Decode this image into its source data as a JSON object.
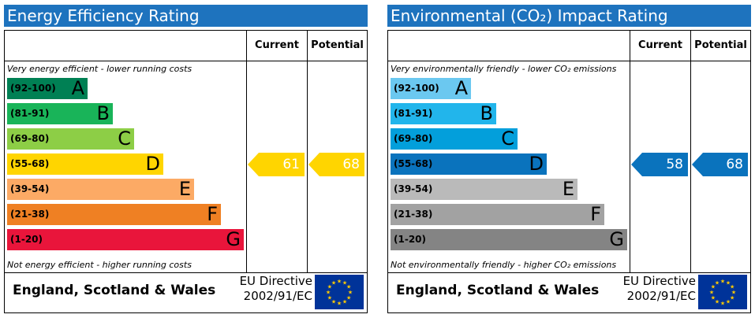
{
  "chart_data": [
    {
      "type": "bar",
      "title": "Energy Efficiency Rating",
      "columns": [
        "Current",
        "Potential"
      ],
      "top_note": "Very energy efficient - lower running costs",
      "bottom_note": "Not energy efficient - higher running costs",
      "bands": [
        {
          "range": "(92-100)",
          "letter": "A",
          "color": "#008054"
        },
        {
          "range": "(81-91)",
          "letter": "B",
          "color": "#19b459"
        },
        {
          "range": "(69-80)",
          "letter": "C",
          "color": "#8dce46"
        },
        {
          "range": "(55-68)",
          "letter": "D",
          "color": "#ffd500"
        },
        {
          "range": "(39-54)",
          "letter": "E",
          "color": "#fcaa65"
        },
        {
          "range": "(21-38)",
          "letter": "F",
          "color": "#ef8023"
        },
        {
          "range": "(1-20)",
          "letter": "G",
          "color": "#e9153b"
        }
      ],
      "current": {
        "value": 61,
        "color": "#ffd500"
      },
      "potential": {
        "value": 68,
        "color": "#ffd500"
      },
      "footer_region": "England, Scotland & Wales",
      "directive_line1": "EU Directive",
      "directive_line2": "2002/91/EC"
    },
    {
      "type": "bar",
      "title": "Environmental (CO₂) Impact Rating",
      "columns": [
        "Current",
        "Potential"
      ],
      "top_note": "Very environmentally friendly - lower CO₂ emissions",
      "bottom_note": "Not environmentally friendly - higher CO₂ emissions",
      "bands": [
        {
          "range": "(92-100)",
          "letter": "A",
          "color": "#6bc8f0"
        },
        {
          "range": "(81-91)",
          "letter": "B",
          "color": "#22b5eb"
        },
        {
          "range": "(69-80)",
          "letter": "C",
          "color": "#039fdb"
        },
        {
          "range": "(55-68)",
          "letter": "D",
          "color": "#0a73bd"
        },
        {
          "range": "(39-54)",
          "letter": "E",
          "color": "#bababa"
        },
        {
          "range": "(21-38)",
          "letter": "F",
          "color": "#a2a2a2"
        },
        {
          "range": "(1-20)",
          "letter": "G",
          "color": "#848484"
        }
      ],
      "current": {
        "value": 58,
        "color": "#0a73bd"
      },
      "potential": {
        "value": 68,
        "color": "#0a73bd"
      },
      "footer_region": "England, Scotland & Wales",
      "directive_line1": "EU Directive",
      "directive_line2": "2002/91/EC"
    }
  ]
}
